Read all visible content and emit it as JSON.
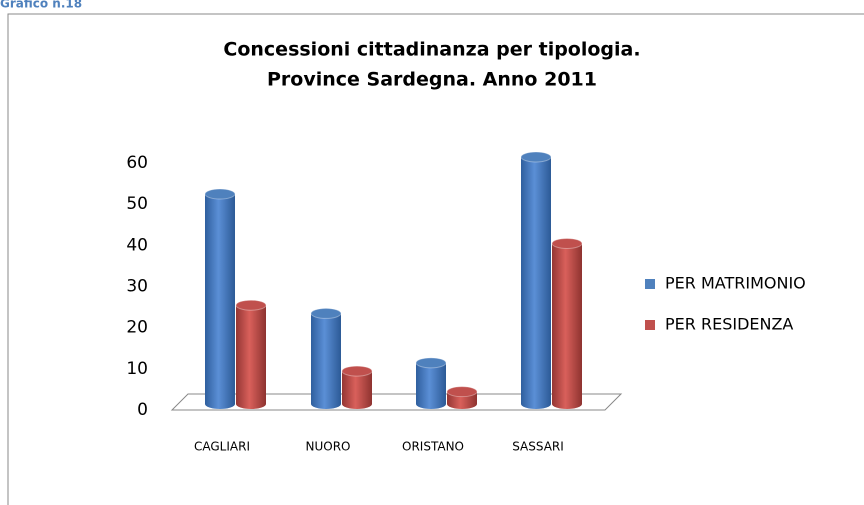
{
  "caption": "Grafico n.18",
  "chart_data": {
    "type": "bar3d",
    "title": "Concessioni cittadinanza per tipologia.",
    "subtitle": "Province Sardegna. Anno 2011",
    "categories": [
      "CAGLIARI",
      "NUORO",
      "ORISTANO",
      "SASSARI"
    ],
    "series": [
      {
        "name": "PER MATRIMONIO",
        "color": "#4f81bd",
        "values": [
          51,
          22,
          10,
          60
        ]
      },
      {
        "name": "PER RESIDENZA",
        "color": "#c0504d",
        "values": [
          24,
          8,
          3,
          39
        ]
      }
    ],
    "ylim": [
      0,
      60
    ],
    "yticks": [
      0,
      10,
      20,
      30,
      40,
      50,
      60
    ],
    "grid": false,
    "legend": "right"
  }
}
